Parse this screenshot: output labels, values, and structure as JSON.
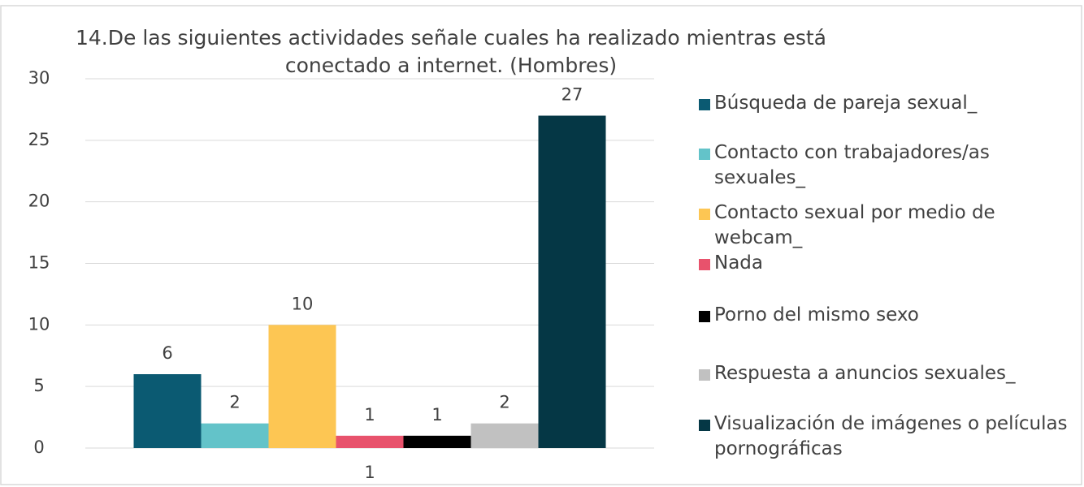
{
  "chart_data": {
    "type": "bar",
    "title": "14.De las siguientes actividades señale cuales ha realizado mientras está conectado a internet. (Hombres)",
    "categories": [
      "1"
    ],
    "series": [
      {
        "name": "Búsqueda de pareja sexual_",
        "color": "#0b5a72",
        "values": [
          6
        ]
      },
      {
        "name": "Contacto con trabajadores/as sexuales_",
        "color": "#63c3c9",
        "values": [
          2
        ]
      },
      {
        "name": "Contacto sexual por medio de webcam_",
        "color": "#fdc653",
        "values": [
          10
        ]
      },
      {
        "name": "Nada",
        "color": "#e8526c",
        "values": [
          1
        ]
      },
      {
        "name": "Porno del mismo sexo",
        "color": "#000000",
        "values": [
          1
        ]
      },
      {
        "name": "Respuesta a anuncios sexuales_",
        "color": "#c1c1c1",
        "values": [
          2
        ]
      },
      {
        "name": "Visualización de imágenes o películas pornográficas",
        "color": "#053745",
        "values": [
          27
        ]
      }
    ],
    "ylim": [
      0,
      30
    ],
    "yticks": [
      0,
      5,
      10,
      15,
      20,
      25,
      30
    ],
    "grid": true,
    "legend": "right"
  }
}
